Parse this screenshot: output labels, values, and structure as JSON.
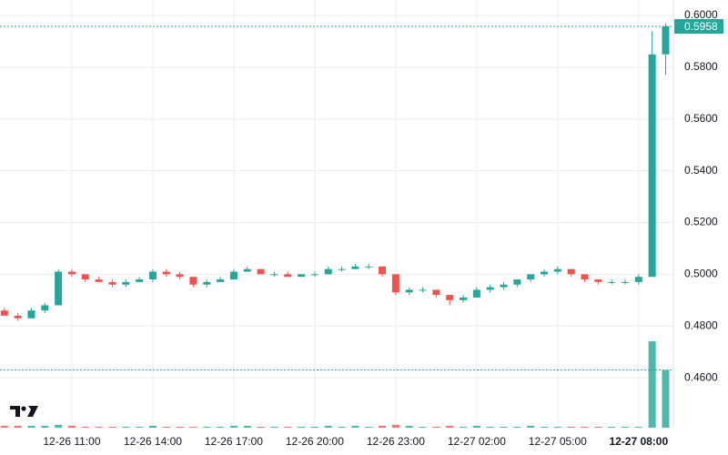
{
  "chart_data": {
    "type": "candlestick",
    "categories": [
      "12-26 08:30",
      "12-26 09:00",
      "12-26 09:30",
      "12-26 10:00",
      "12-26 10:30",
      "12-26 11:00",
      "12-26 11:30",
      "12-26 12:00",
      "12-26 12:30",
      "12-26 13:00",
      "12-26 13:30",
      "12-26 14:00",
      "12-26 14:30",
      "12-26 15:00",
      "12-26 15:30",
      "12-26 16:00",
      "12-26 16:30",
      "12-26 17:00",
      "12-26 17:30",
      "12-26 18:00",
      "12-26 18:30",
      "12-26 19:00",
      "12-26 19:30",
      "12-26 20:00",
      "12-26 20:30",
      "12-26 21:00",
      "12-26 21:30",
      "12-26 22:00",
      "12-26 22:30",
      "12-26 23:00",
      "12-26 23:30",
      "12-27 00:00",
      "12-27 00:30",
      "12-27 01:00",
      "12-27 01:30",
      "12-27 02:00",
      "12-27 02:30",
      "12-27 03:00",
      "12-27 03:30",
      "12-27 04:00",
      "12-27 04:30",
      "12-27 05:00",
      "12-27 05:30",
      "12-27 06:00",
      "12-27 06:30",
      "12-27 07:00",
      "12-27 07:30",
      "12-27 08:00",
      "12-27 08:30",
      "12-27 09:00"
    ],
    "open": [
      0.486,
      0.484,
      0.483,
      0.486,
      0.488,
      0.501,
      0.5,
      0.498,
      0.497,
      0.496,
      0.497,
      0.498,
      0.501,
      0.5,
      0.499,
      0.496,
      0.497,
      0.498,
      0.501,
      0.502,
      0.5,
      0.5,
      0.499,
      0.5,
      0.5,
      0.502,
      0.502,
      0.503,
      0.503,
      0.5,
      0.493,
      0.494,
      0.494,
      0.492,
      0.49,
      0.491,
      0.494,
      0.495,
      0.496,
      0.498,
      0.5,
      0.501,
      0.502,
      0.5,
      0.498,
      0.497,
      0.497,
      0.497,
      0.499,
      0.585
    ],
    "high": [
      0.487,
      0.485,
      0.487,
      0.489,
      0.502,
      0.502,
      0.5,
      0.499,
      0.498,
      0.498,
      0.499,
      0.502,
      0.502,
      0.501,
      0.499,
      0.498,
      0.499,
      0.502,
      0.503,
      0.502,
      0.501,
      0.501,
      0.5,
      0.501,
      0.503,
      0.503,
      0.504,
      0.504,
      0.503,
      0.5,
      0.495,
      0.495,
      0.494,
      0.492,
      0.492,
      0.495,
      0.496,
      0.497,
      0.498,
      0.5,
      0.502,
      0.503,
      0.502,
      0.5,
      0.498,
      0.498,
      0.498,
      0.5,
      0.594,
      0.597
    ],
    "low": [
      0.484,
      0.482,
      0.483,
      0.485,
      0.488,
      0.499,
      0.497,
      0.497,
      0.495,
      0.495,
      0.497,
      0.497,
      0.499,
      0.498,
      0.495,
      0.495,
      0.497,
      0.498,
      0.501,
      0.5,
      0.499,
      0.499,
      0.499,
      0.499,
      0.5,
      0.501,
      0.502,
      0.502,
      0.499,
      0.492,
      0.492,
      0.493,
      0.491,
      0.488,
      0.489,
      0.491,
      0.493,
      0.494,
      0.495,
      0.497,
      0.499,
      0.5,
      0.499,
      0.497,
      0.496,
      0.496,
      0.496,
      0.496,
      0.499,
      0.577
    ],
    "close": [
      0.484,
      0.483,
      0.486,
      0.488,
      0.501,
      0.5,
      0.498,
      0.497,
      0.496,
      0.497,
      0.498,
      0.501,
      0.5,
      0.499,
      0.496,
      0.497,
      0.498,
      0.501,
      0.502,
      0.5,
      0.5,
      0.499,
      0.5,
      0.5,
      0.502,
      0.502,
      0.503,
      0.503,
      0.5,
      0.493,
      0.494,
      0.494,
      0.492,
      0.49,
      0.491,
      0.494,
      0.495,
      0.496,
      0.498,
      0.5,
      0.501,
      0.502,
      0.5,
      0.498,
      0.497,
      0.497,
      0.497,
      0.499,
      0.585,
      0.5958
    ],
    "volume": [
      2,
      2,
      2,
      2,
      3,
      2,
      1,
      1,
      1,
      1,
      1,
      2,
      1,
      1,
      1,
      1,
      1,
      2,
      2,
      1,
      1,
      1,
      1,
      1,
      2,
      1,
      2,
      1,
      2,
      3,
      2,
      1,
      1,
      2,
      1,
      2,
      1,
      1,
      1,
      2,
      1,
      1,
      1,
      1,
      1,
      1,
      1,
      1,
      90,
      60
    ],
    "up_color": "#26a69a",
    "down_color": "#ef5350",
    "ylim": [
      0.4407,
      0.606
    ],
    "yticks": [
      {
        "value": 0.46,
        "label": "0.4600"
      },
      {
        "value": 0.48,
        "label": "0.4800"
      },
      {
        "value": 0.5,
        "label": "0.5000"
      },
      {
        "value": 0.52,
        "label": "0.5200"
      },
      {
        "value": 0.54,
        "label": "0.5400"
      },
      {
        "value": 0.56,
        "label": "0.5600"
      },
      {
        "value": 0.58,
        "label": "0.5800"
      },
      {
        "value": 0.6,
        "label": "0.6000"
      }
    ],
    "xticks": [
      "12-26 11:00",
      "12-26 14:00",
      "12-26 17:00",
      "12-26 20:00",
      "12-26 23:00",
      "12-27 02:00",
      "12-27 05:00",
      "12-27 08:00"
    ],
    "last_price": 0.5958,
    "grid": true
  }
}
